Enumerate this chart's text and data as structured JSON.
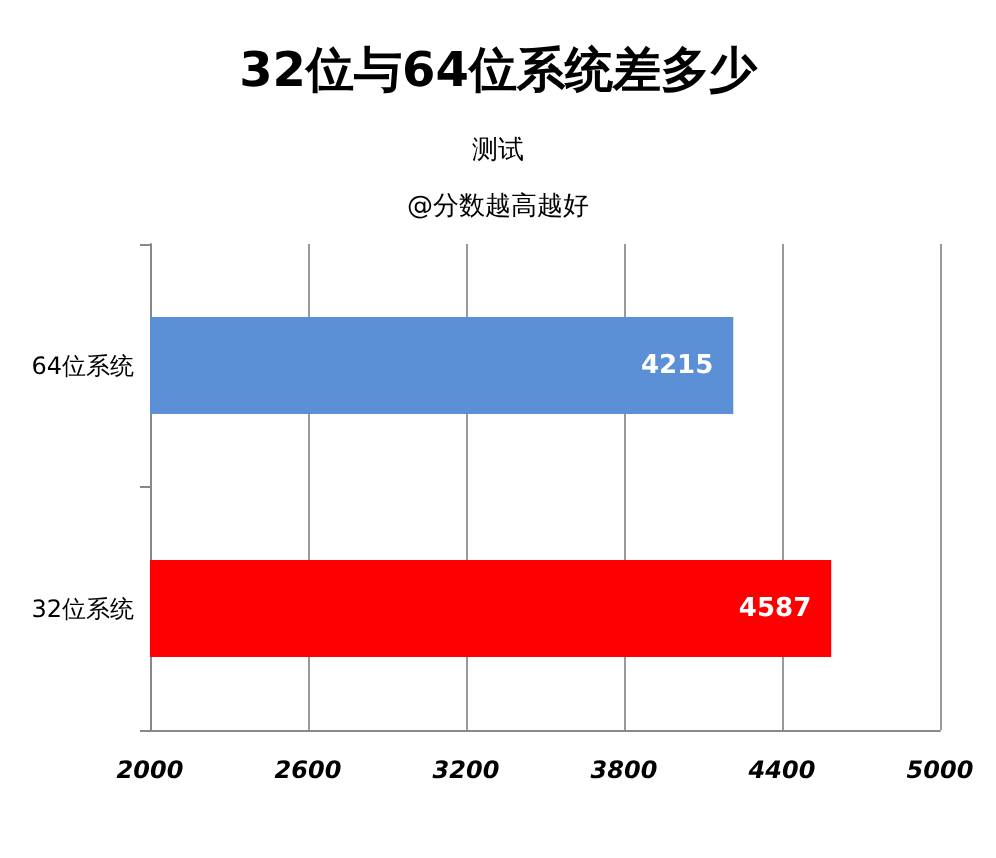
{
  "chart_data": {
    "type": "bar",
    "orientation": "horizontal",
    "title": "32位与64位系统差多少",
    "subtitle": "测试",
    "annotations": [
      "@分数越高越好"
    ],
    "categories": [
      "64位系统",
      "32位系统"
    ],
    "values": [
      4215,
      4587
    ],
    "colors": [
      "#5b8fd6",
      "#ff0000"
    ],
    "xlim": [
      2000,
      5000
    ],
    "xticks": [
      2000,
      2600,
      3200,
      3800,
      4400,
      5000
    ],
    "grid": "x",
    "data_labels": true
  }
}
